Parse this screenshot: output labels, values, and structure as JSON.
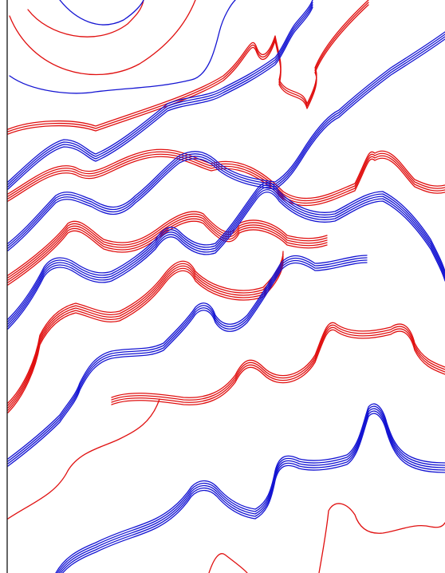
{
  "palette": {
    "background": "#ffffff",
    "border": "#000000",
    "red": "#e01010",
    "blue": "#1414d2"
  },
  "legend": []
}
